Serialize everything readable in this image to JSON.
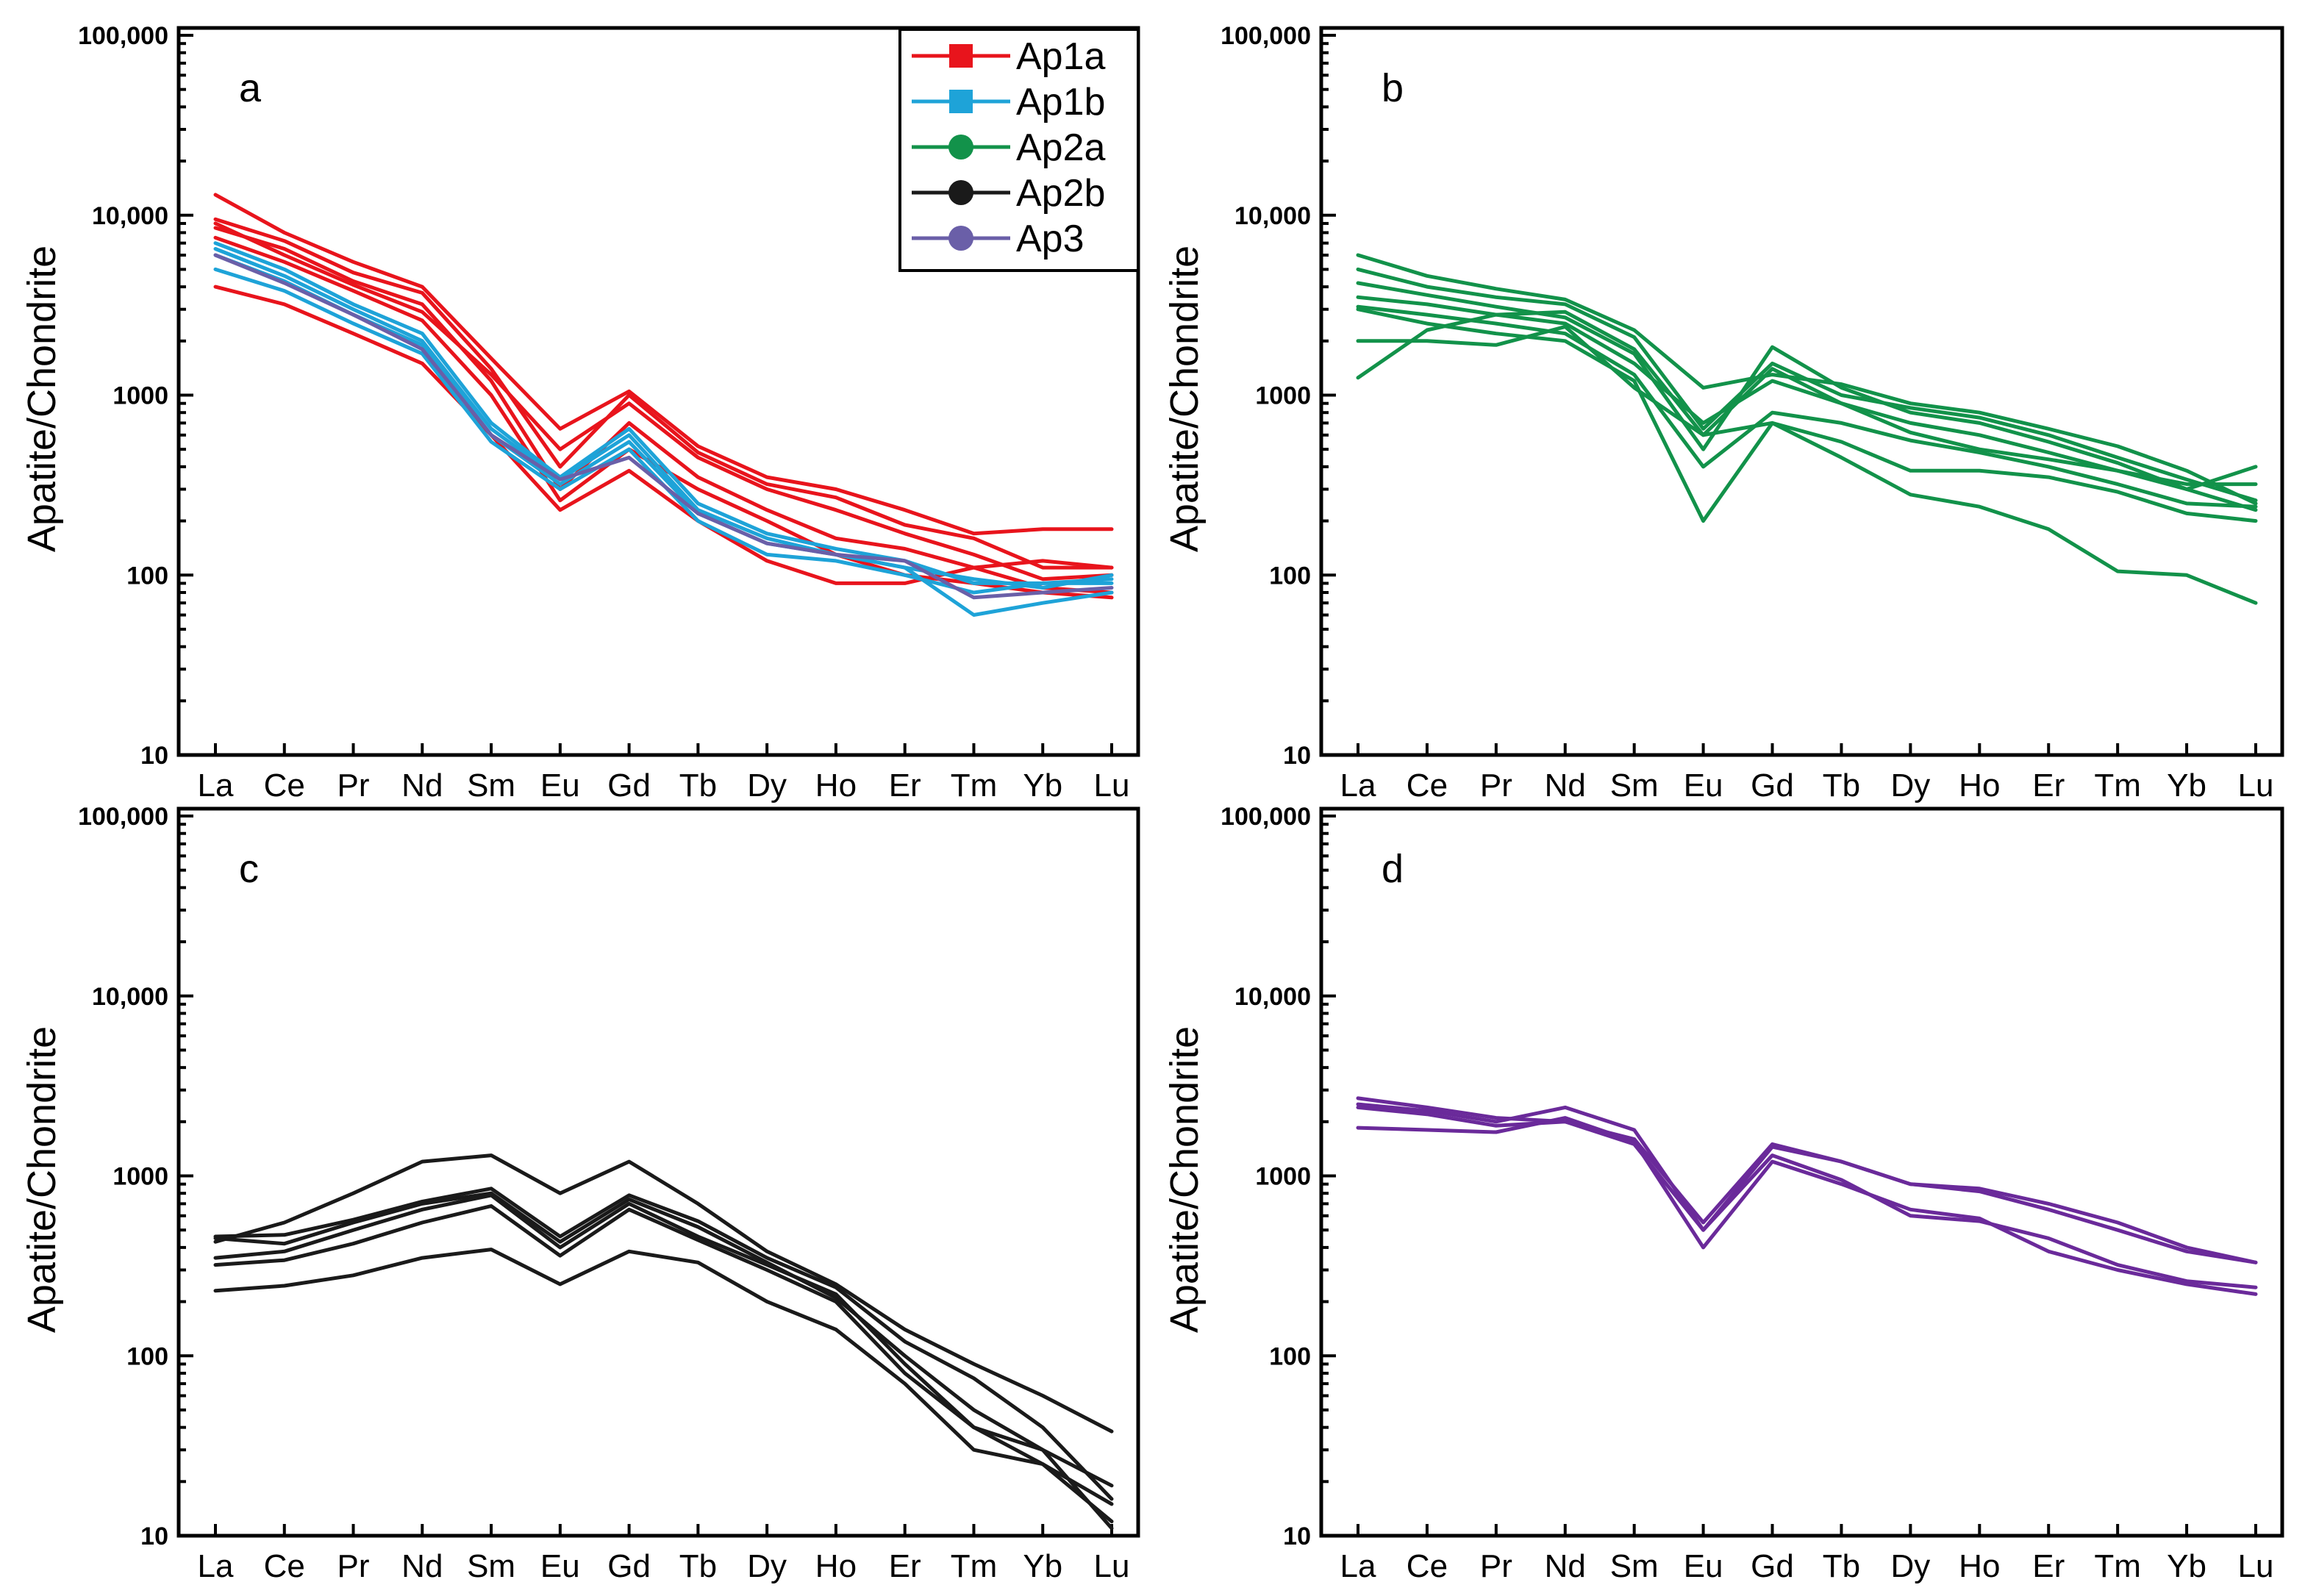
{
  "chart_data": [
    {
      "type": "line",
      "panel_label": "a",
      "ylabel": "Apatite/Chondrite",
      "yscale": "log",
      "ylim": [
        10,
        100000
      ],
      "ytick_labels": [
        "10",
        "100",
        "1000",
        "10,000",
        "100,000"
      ],
      "categories": [
        "La",
        "Ce",
        "Pr",
        "Nd",
        "Sm",
        "Eu",
        "Gd",
        "Tb",
        "Dy",
        "Ho",
        "Er",
        "Tm",
        "Yb",
        "Lu"
      ],
      "legend": [
        {
          "name": "Ap1a",
          "color": "#e8141c",
          "marker": "square"
        },
        {
          "name": "Ap1b",
          "color": "#1ea3d8",
          "marker": "square"
        },
        {
          "name": "Ap2a",
          "color": "#12924a",
          "marker": "circle"
        },
        {
          "name": "Ap2b",
          "color": "#1a1a1a",
          "marker": "circle"
        },
        {
          "name": "Ap3",
          "color": "#6a5fa8",
          "marker": "circle"
        }
      ],
      "series": [
        {
          "group": "Ap1a",
          "color": "#e8141c",
          "values": [
            13000,
            8000,
            5500,
            4000,
            1600,
            650,
            1050,
            520,
            350,
            300,
            230,
            170,
            180,
            180
          ]
        },
        {
          "group": "Ap1a",
          "color": "#e8141c",
          "values": [
            9500,
            7200,
            4800,
            3700,
            1400,
            400,
            1000,
            480,
            320,
            270,
            190,
            160,
            110,
            110
          ]
        },
        {
          "group": "Ap1a",
          "color": "#e8141c",
          "values": [
            8500,
            6500,
            4300,
            3200,
            1200,
            300,
            700,
            350,
            230,
            160,
            140,
            110,
            85,
            80
          ]
        },
        {
          "group": "Ap1a",
          "color": "#e8141c",
          "values": [
            7500,
            5500,
            3800,
            2600,
            1000,
            260,
            500,
            300,
            200,
            130,
            100,
            90,
            80,
            75
          ]
        },
        {
          "group": "Ap1a",
          "color": "#e8141c",
          "values": [
            4000,
            3200,
            2200,
            1500,
            600,
            230,
            380,
            200,
            120,
            90,
            90,
            110,
            120,
            110
          ]
        },
        {
          "group": "Ap1a",
          "color": "#e8141c",
          "values": [
            9000,
            6000,
            4100,
            2900,
            1300,
            500,
            900,
            450,
            300,
            230,
            170,
            130,
            95,
            100
          ]
        },
        {
          "group": "Ap1b",
          "color": "#1ea3d8",
          "values": [
            7000,
            5000,
            3200,
            2200,
            700,
            350,
            650,
            250,
            170,
            140,
            120,
            90,
            90,
            95
          ]
        },
        {
          "group": "Ap1b",
          "color": "#1ea3d8",
          "values": [
            6000,
            4300,
            2800,
            1900,
            600,
            320,
            550,
            220,
            150,
            130,
            110,
            60,
            70,
            80
          ]
        },
        {
          "group": "Ap1b",
          "color": "#1ea3d8",
          "values": [
            5000,
            3800,
            2500,
            1700,
            550,
            300,
            500,
            200,
            130,
            120,
            100,
            80,
            90,
            90
          ]
        },
        {
          "group": "Ap1b",
          "color": "#1ea3d8",
          "values": [
            6500,
            4600,
            3000,
            2000,
            650,
            340,
            600,
            230,
            160,
            130,
            110,
            95,
            85,
            100
          ]
        },
        {
          "group": "Ap3",
          "color": "#6a5fa8",
          "values": [
            6000,
            4200,
            2800,
            1800,
            600,
            340,
            450,
            220,
            150,
            130,
            120,
            75,
            80,
            85
          ]
        }
      ]
    },
    {
      "type": "line",
      "panel_label": "b",
      "ylabel": "Apatite/Chondrite",
      "yscale": "log",
      "ylim": [
        10,
        100000
      ],
      "ytick_labels": [
        "10",
        "100",
        "1000",
        "10,000",
        "100,000"
      ],
      "categories": [
        "La",
        "Ce",
        "Pr",
        "Nd",
        "Sm",
        "Eu",
        "Gd",
        "Tb",
        "Dy",
        "Ho",
        "Er",
        "Tm",
        "Yb",
        "Lu"
      ],
      "series": [
        {
          "group": "Ap2a",
          "color": "#12924a",
          "values": [
            6000,
            4600,
            3900,
            3400,
            2300,
            1100,
            1300,
            1150,
            900,
            800,
            650,
            520,
            380,
            250
          ]
        },
        {
          "group": "Ap2a",
          "color": "#12924a",
          "values": [
            5000,
            4000,
            3500,
            3200,
            2100,
            650,
            1500,
            1000,
            850,
            750,
            600,
            450,
            340,
            260
          ]
        },
        {
          "group": "Ap2a",
          "color": "#12924a",
          "values": [
            4200,
            3600,
            3100,
            2700,
            1700,
            500,
            1850,
            1100,
            800,
            700,
            550,
            420,
            300,
            230
          ]
        },
        {
          "group": "Ap2a",
          "color": "#12924a",
          "values": [
            3500,
            3200,
            2800,
            2500,
            1500,
            700,
            1200,
            900,
            700,
            600,
            480,
            380,
            320,
            320
          ]
        },
        {
          "group": "Ap2a",
          "color": "#12924a",
          "values": [
            3100,
            2800,
            2500,
            2200,
            1300,
            400,
            800,
            700,
            560,
            480,
            400,
            320,
            250,
            240
          ]
        },
        {
          "group": "Ap2a",
          "color": "#12924a",
          "values": [
            3000,
            2500,
            2200,
            2000,
            1200,
            200,
            700,
            550,
            380,
            380,
            350,
            290,
            220,
            200
          ]
        },
        {
          "group": "Ap2a",
          "color": "#12924a",
          "values": [
            2000,
            2000,
            1900,
            2400,
            1100,
            600,
            700,
            450,
            280,
            240,
            180,
            105,
            100,
            70
          ]
        },
        {
          "group": "Ap2a",
          "color": "#12924a",
          "values": [
            1250,
            2300,
            2800,
            2900,
            1800,
            600,
            1400,
            900,
            620,
            500,
            440,
            380,
            300,
            400
          ]
        }
      ]
    },
    {
      "type": "line",
      "panel_label": "c",
      "ylabel": "Apatite/Chondrite",
      "yscale": "log",
      "ylim": [
        10,
        100000
      ],
      "ytick_labels": [
        "10",
        "100",
        "1000",
        "10,000",
        "100,000"
      ],
      "categories": [
        "La",
        "Ce",
        "Pr",
        "Nd",
        "Sm",
        "Eu",
        "Gd",
        "Tb",
        "Dy",
        "Ho",
        "Er",
        "Tm",
        "Yb",
        "Lu"
      ],
      "series": [
        {
          "group": "Ap2b",
          "color": "#1a1a1a",
          "values": [
            430,
            550,
            800,
            1200,
            1300,
            800,
            1200,
            700,
            380,
            250,
            140,
            90,
            60,
            38
          ]
        },
        {
          "group": "Ap2b",
          "color": "#1a1a1a",
          "values": [
            460,
            470,
            570,
            720,
            850,
            460,
            780,
            560,
            350,
            240,
            120,
            75,
            40,
            16
          ]
        },
        {
          "group": "Ap2b",
          "color": "#1a1a1a",
          "values": [
            450,
            420,
            550,
            700,
            800,
            430,
            740,
            520,
            330,
            210,
            100,
            50,
            30,
            19
          ]
        },
        {
          "group": "Ap2b",
          "color": "#1a1a1a",
          "values": [
            350,
            380,
            500,
            650,
            780,
            400,
            700,
            460,
            320,
            220,
            90,
            40,
            25,
            12
          ]
        },
        {
          "group": "Ap2b",
          "color": "#1a1a1a",
          "values": [
            320,
            340,
            420,
            550,
            680,
            360,
            650,
            440,
            300,
            200,
            80,
            40,
            30,
            11
          ]
        },
        {
          "group": "Ap2b",
          "color": "#1a1a1a",
          "values": [
            230,
            245,
            280,
            350,
            390,
            250,
            380,
            330,
            200,
            140,
            70,
            30,
            25,
            15
          ]
        }
      ]
    },
    {
      "type": "line",
      "panel_label": "d",
      "ylabel": "Apatite/Chondrite",
      "yscale": "log",
      "ylim": [
        10,
        100000
      ],
      "ytick_labels": [
        "10",
        "100",
        "1000",
        "10,000",
        "100,000"
      ],
      "categories": [
        "La",
        "Ce",
        "Pr",
        "Nd",
        "Sm",
        "Eu",
        "Gd",
        "Tb",
        "Dy",
        "Ho",
        "Er",
        "Tm",
        "Yb",
        "Lu"
      ],
      "series": [
        {
          "group": "Ap3",
          "color": "#6a2a9a",
          "values": [
            2700,
            2400,
            2100,
            2000,
            1600,
            550,
            1500,
            1200,
            900,
            850,
            700,
            550,
            400,
            330
          ]
        },
        {
          "group": "Ap3",
          "color": "#6a2a9a",
          "values": [
            2500,
            2300,
            2000,
            2400,
            1800,
            500,
            1450,
            1200,
            900,
            820,
            650,
            500,
            380,
            330
          ]
        },
        {
          "group": "Ap3",
          "color": "#6a2a9a",
          "values": [
            1850,
            1800,
            1750,
            2100,
            1550,
            400,
            1200,
            900,
            650,
            580,
            380,
            300,
            250,
            220
          ]
        },
        {
          "group": "Ap3",
          "color": "#6a2a9a",
          "values": [
            2400,
            2200,
            1900,
            2000,
            1500,
            500,
            1300,
            950,
            600,
            560,
            450,
            320,
            260,
            240
          ]
        }
      ]
    }
  ]
}
